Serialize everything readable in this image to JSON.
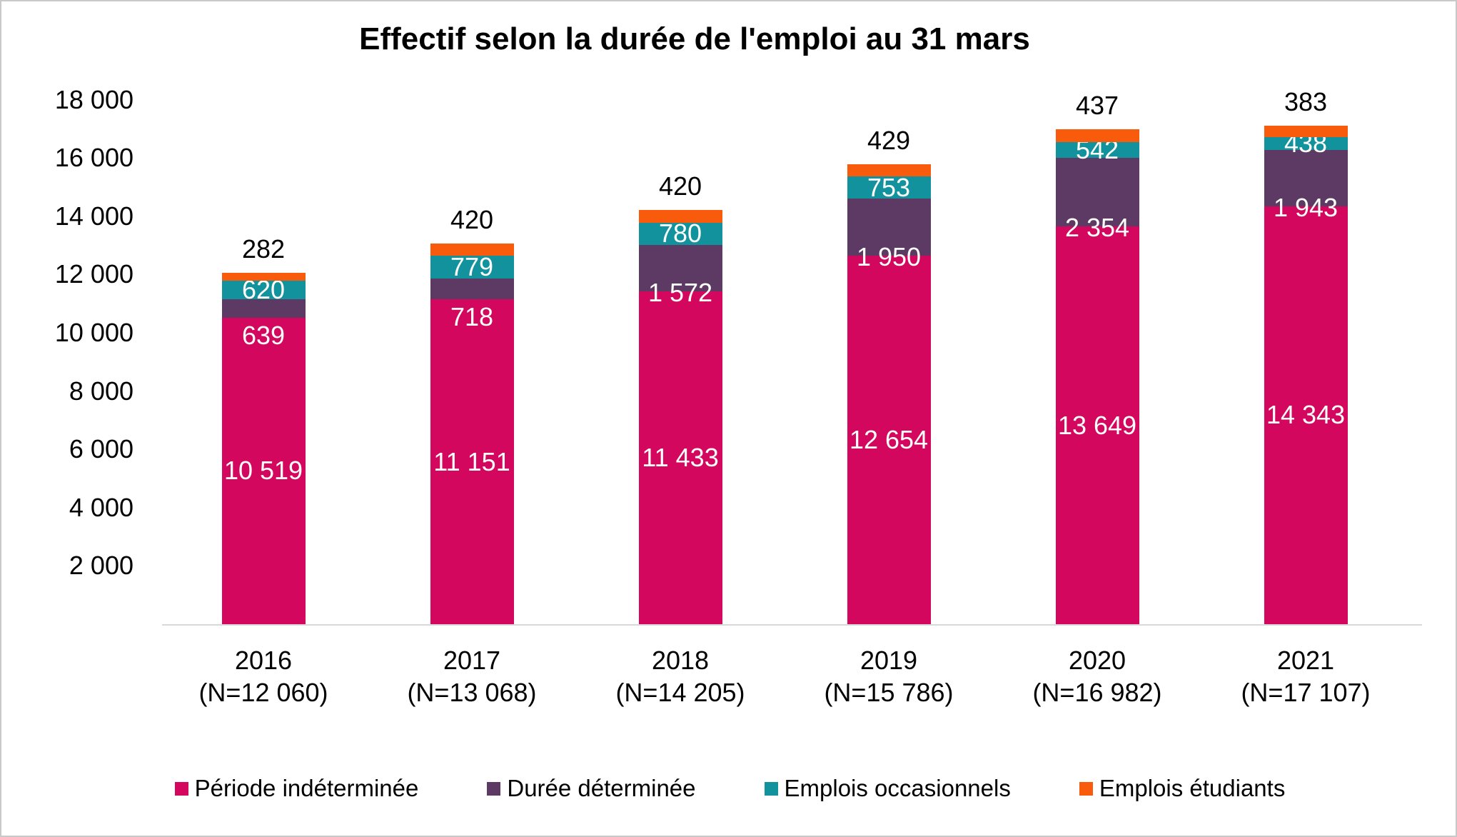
{
  "chart_data": {
    "type": "bar",
    "stacked": true,
    "title": "Effectif selon la durée de l'emploi au 31 mars",
    "categories": [
      "2016",
      "2017",
      "2018",
      "2019",
      "2020",
      "2021"
    ],
    "category_sublabels": [
      "(N=12 060)",
      "(N=13 068)",
      "(N=14 205)",
      "(N=15 786)",
      "(N=16 982)",
      "(N=17 107)"
    ],
    "totals": [
      12060,
      13068,
      14205,
      15786,
      16982,
      17107
    ],
    "series": [
      {
        "name": "Période indéterminée",
        "color": "#d4075e",
        "values": [
          10519,
          11151,
          11433,
          12654,
          13649,
          14343
        ],
        "labels": [
          "10 519",
          "11 151",
          "11 433",
          "12 654",
          "13 649",
          "14 343"
        ],
        "label_placement": "center"
      },
      {
        "name": "Durée déterminée",
        "color": "#5d3a63",
        "values": [
          639,
          718,
          1572,
          1950,
          2354,
          1943
        ],
        "labels": [
          "639",
          "718",
          "1 572",
          "1 950",
          "2 354",
          "1 943"
        ],
        "label_placement": "inside-base"
      },
      {
        "name": "Emplois occasionnels",
        "color": "#12929c",
        "values": [
          620,
          779,
          780,
          753,
          542,
          438
        ],
        "labels": [
          "620",
          "779",
          "780",
          "753",
          "542",
          "438"
        ],
        "label_placement": "center"
      },
      {
        "name": "Emplois étudiants",
        "color": "#f95b0d",
        "values": [
          282,
          420,
          420,
          429,
          437,
          383
        ],
        "labels": [
          "282",
          "420",
          "420",
          "429",
          "437",
          "383"
        ],
        "label_placement": "outside-top"
      }
    ],
    "y_ticks": [
      "18 000",
      "16 000",
      "14 000",
      "12 000",
      "10 000",
      "8 000",
      "6 000",
      "4 000",
      "2 000"
    ],
    "y_tick_values": [
      18000,
      16000,
      14000,
      12000,
      10000,
      8000,
      6000,
      4000,
      2000
    ],
    "ylim": [
      0,
      18000
    ],
    "grid": false,
    "legend_position": "bottom",
    "axis_line_color": "#d9d9d9",
    "label_text_color_inside": "#ffffff",
    "label_text_color_outside": "#000000"
  }
}
